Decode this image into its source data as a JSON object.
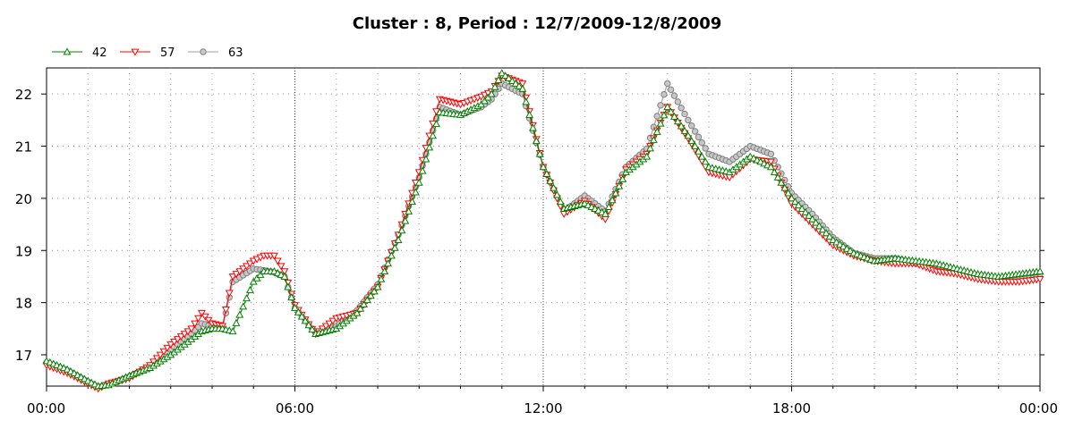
{
  "chart_data": {
    "type": "line",
    "title": "Cluster : 8, Period : 12/7/2009-12/8/2009",
    "xlabel": "",
    "ylabel": "",
    "x_ticks": [
      "00:00",
      "06:00",
      "12:00",
      "18:00",
      "00:00"
    ],
    "x_range_hours": [
      0,
      24
    ],
    "ylim": [
      16.4,
      22.5
    ],
    "y_ticks": [
      17,
      18,
      19,
      20,
      21,
      22
    ],
    "grid": true,
    "legend_position": "top-left",
    "x_hours": [
      0,
      0.5,
      1,
      1.25,
      1.5,
      2,
      2.5,
      3,
      3.5,
      3.75,
      4,
      4.25,
      4.5,
      5,
      5.25,
      5.5,
      5.75,
      6,
      6.5,
      7,
      7.5,
      8,
      8.5,
      9,
      9.5,
      10,
      10.5,
      10.75,
      11,
      11.5,
      12,
      12.5,
      13,
      13.5,
      14,
      14.5,
      15,
      15.5,
      16,
      16.5,
      17,
      17.5,
      18,
      18.5,
      19,
      19.5,
      20,
      20.5,
      21,
      21.5,
      22,
      22.5,
      23,
      23.5,
      24
    ],
    "series": [
      {
        "name": "42",
        "color": "#008000",
        "marker": "triangle-up",
        "values": [
          16.88,
          16.72,
          16.5,
          16.4,
          16.42,
          16.6,
          16.75,
          17.0,
          17.3,
          17.45,
          17.5,
          17.5,
          17.45,
          18.4,
          18.6,
          18.6,
          18.5,
          17.9,
          17.4,
          17.5,
          17.8,
          18.3,
          19.2,
          20.3,
          21.65,
          21.6,
          21.8,
          22.0,
          22.4,
          22.1,
          20.6,
          19.8,
          19.9,
          19.7,
          20.5,
          20.8,
          21.75,
          21.2,
          20.6,
          20.5,
          20.8,
          20.6,
          20.0,
          19.6,
          19.2,
          18.95,
          18.8,
          18.85,
          18.8,
          18.75,
          18.65,
          18.55,
          18.5,
          18.55,
          18.6
        ]
      },
      {
        "name": "57",
        "color": "#ff0000",
        "marker": "triangle-down",
        "values": [
          16.8,
          16.65,
          16.45,
          16.35,
          16.45,
          16.55,
          16.8,
          17.2,
          17.5,
          17.8,
          17.6,
          17.55,
          18.5,
          18.8,
          18.9,
          18.9,
          18.6,
          17.95,
          17.4,
          17.7,
          17.8,
          18.3,
          19.3,
          20.5,
          21.9,
          21.8,
          21.95,
          22.05,
          22.35,
          22.2,
          20.6,
          19.7,
          19.95,
          19.6,
          20.55,
          20.85,
          21.75,
          21.15,
          20.5,
          20.4,
          20.75,
          20.7,
          19.9,
          19.5,
          19.1,
          18.9,
          18.8,
          18.75,
          18.75,
          18.6,
          18.55,
          18.45,
          18.4,
          18.4,
          18.45
        ]
      },
      {
        "name": "63",
        "color": "#a0a0a0",
        "marker": "circle",
        "values": [
          16.85,
          16.7,
          16.48,
          16.38,
          16.43,
          16.58,
          16.78,
          17.1,
          17.4,
          17.6,
          17.55,
          17.5,
          18.4,
          18.65,
          18.62,
          18.58,
          18.5,
          17.9,
          17.42,
          17.55,
          17.85,
          18.35,
          19.3,
          20.4,
          21.75,
          21.6,
          21.75,
          21.9,
          22.2,
          22.0,
          20.6,
          19.75,
          20.05,
          19.75,
          20.6,
          20.95,
          22.2,
          21.5,
          20.85,
          20.7,
          21.0,
          20.85,
          20.1,
          19.7,
          19.25,
          18.95,
          18.85,
          18.85,
          18.75,
          18.7,
          18.6,
          18.5,
          18.45,
          18.5,
          18.55
        ]
      }
    ]
  }
}
